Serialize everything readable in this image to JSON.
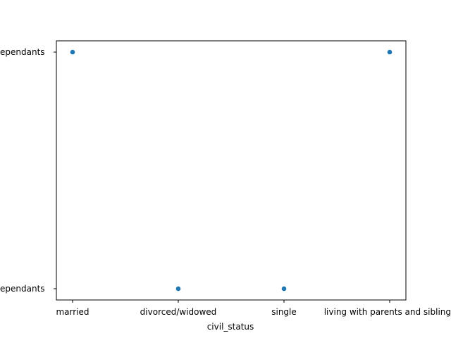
{
  "chart_data": {
    "type": "scatter",
    "title": "",
    "xlabel": "civil_status",
    "ylabel": "",
    "x_categories": [
      "married",
      "divorced/widowed",
      "single",
      "living with parents and siblings"
    ],
    "y_categories": [
      "No dependants",
      "Dependants"
    ],
    "y_tick_labels_visible": [
      "ependants",
      "ependants"
    ],
    "points": [
      {
        "x": "married",
        "y": "Dependants"
      },
      {
        "x": "divorced/widowed",
        "y": "No dependants"
      },
      {
        "x": "single",
        "y": "No dependants"
      },
      {
        "x": "living with parents and siblings",
        "y": "Dependants"
      }
    ],
    "grid": false,
    "legend": "none",
    "marker_color": "#1f77b4"
  }
}
